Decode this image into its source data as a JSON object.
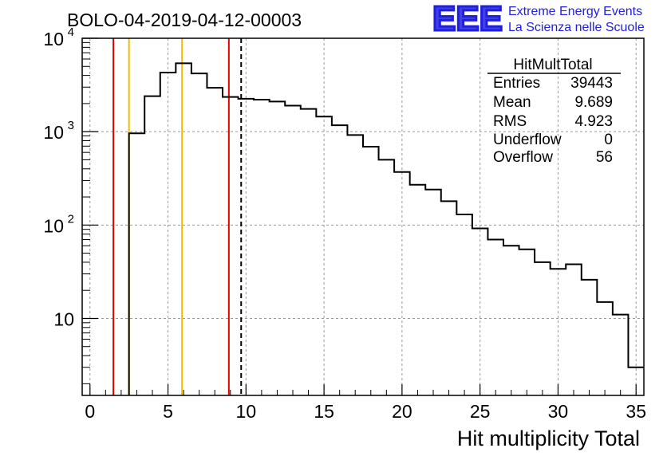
{
  "chart_data": {
    "type": "histogram",
    "title": "BOLO-04-2019-04-12-00003",
    "xlabel": "Hit multiplicity Total",
    "ylabel": "",
    "xlim": [
      -0.5,
      35.5
    ],
    "ylim": [
      1.5,
      10000
    ],
    "yscale": "log",
    "grid": true,
    "x_ticks": [
      "0",
      "5",
      "10",
      "15",
      "20",
      "25",
      "30",
      "35"
    ],
    "x_tick_values": [
      0,
      5,
      10,
      15,
      20,
      25,
      30,
      35
    ],
    "y_ticks": [
      {
        "value": 10,
        "base": "10",
        "exp": ""
      },
      {
        "value": 100,
        "base": "10",
        "exp": "2"
      },
      {
        "value": 1000,
        "base": "10",
        "exp": "3"
      },
      {
        "value": 10000,
        "base": "10",
        "exp": "4"
      }
    ],
    "bin_width": 1,
    "bin_edges_start": 2.5,
    "bins": [
      {
        "x": 3,
        "value": 960
      },
      {
        "x": 4,
        "value": 2400
      },
      {
        "x": 5,
        "value": 4300
      },
      {
        "x": 6,
        "value": 5400
      },
      {
        "x": 7,
        "value": 4200
      },
      {
        "x": 8,
        "value": 2950
      },
      {
        "x": 9,
        "value": 2350
      },
      {
        "x": 10,
        "value": 2250
      },
      {
        "x": 11,
        "value": 2200
      },
      {
        "x": 12,
        "value": 2100
      },
      {
        "x": 13,
        "value": 1900
      },
      {
        "x": 14,
        "value": 1750
      },
      {
        "x": 15,
        "value": 1450
      },
      {
        "x": 16,
        "value": 1170
      },
      {
        "x": 17,
        "value": 920
      },
      {
        "x": 18,
        "value": 690
      },
      {
        "x": 19,
        "value": 500
      },
      {
        "x": 20,
        "value": 370
      },
      {
        "x": 21,
        "value": 270
      },
      {
        "x": 22,
        "value": 240
      },
      {
        "x": 23,
        "value": 180
      },
      {
        "x": 24,
        "value": 130
      },
      {
        "x": 25,
        "value": 92
      },
      {
        "x": 26,
        "value": 70
      },
      {
        "x": 27,
        "value": 60
      },
      {
        "x": 28,
        "value": 55
      },
      {
        "x": 29,
        "value": 40
      },
      {
        "x": 30,
        "value": 34
      },
      {
        "x": 31,
        "value": 38
      },
      {
        "x": 32,
        "value": 26
      },
      {
        "x": 33,
        "value": 15
      },
      {
        "x": 34,
        "value": 11
      },
      {
        "x": 35,
        "value": 3
      }
    ],
    "vertical_lines": [
      {
        "x": 1.5,
        "color": "#e00000",
        "style": "solid"
      },
      {
        "x": 2.5,
        "color": "#f0c000",
        "style": "solid"
      },
      {
        "x": 5.9,
        "color": "#f0c000",
        "style": "solid"
      },
      {
        "x": 8.9,
        "color": "#e00000",
        "style": "solid"
      },
      {
        "x": 9.689,
        "color": "#000000",
        "style": "dashed"
      }
    ],
    "stats_box": {
      "title": "HitMultTotal",
      "rows": [
        {
          "label": "Entries",
          "value": "39443"
        },
        {
          "label": "Mean",
          "value": "9.689"
        },
        {
          "label": "RMS",
          "value": "4.923"
        },
        {
          "label": "Underflow",
          "value": "0"
        },
        {
          "label": "Overflow",
          "value": "56"
        }
      ]
    }
  },
  "logo": {
    "text": "EEE",
    "line1": "Extreme Energy Events",
    "line2": "La Scienza nelle Scuole",
    "color": "#1f1fe0"
  }
}
